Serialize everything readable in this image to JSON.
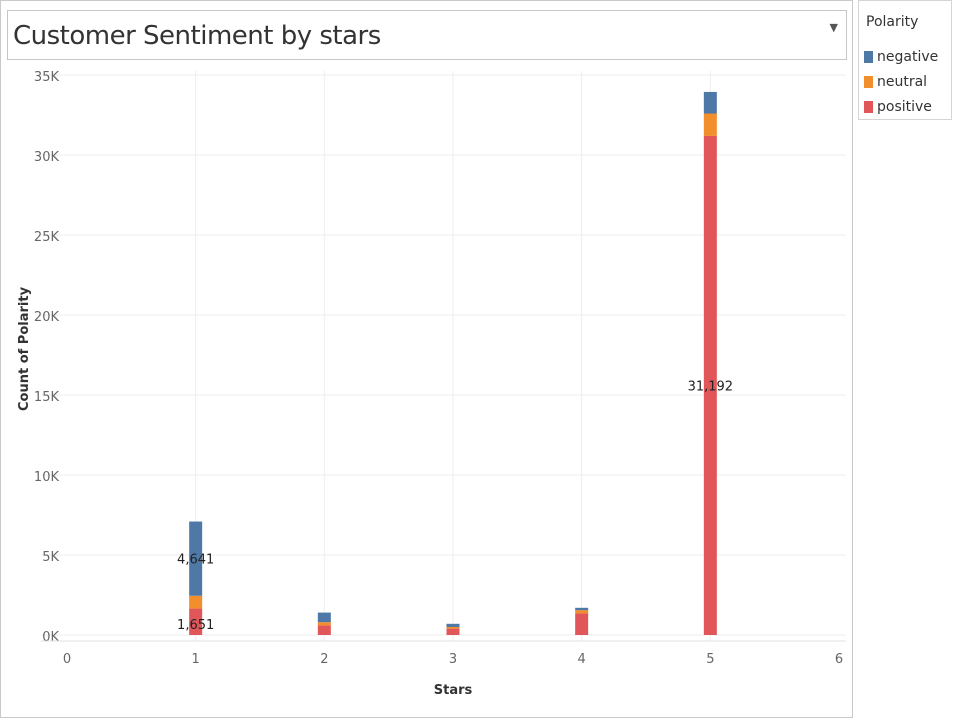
{
  "title": "Customer Sentiment by stars",
  "dropdown_icon": "▼",
  "legend": {
    "title": "Polarity",
    "items": [
      {
        "label": "negative",
        "color": "#4e79a7"
      },
      {
        "label": "neutral",
        "color": "#f28e2b"
      },
      {
        "label": "positive",
        "color": "#e15759"
      }
    ]
  },
  "chart_data": {
    "type": "bar",
    "stacked": true,
    "xlabel": "Stars",
    "ylabel": "Count of Polarity",
    "xlim": [
      0,
      6
    ],
    "ylim": [
      0,
      35000
    ],
    "x_ticks": [
      "0",
      "1",
      "2",
      "3",
      "4",
      "5",
      "6"
    ],
    "y_ticks": [
      {
        "value": 0,
        "label": "0K"
      },
      {
        "value": 5000,
        "label": "5K"
      },
      {
        "value": 10000,
        "label": "10K"
      },
      {
        "value": 15000,
        "label": "15K"
      },
      {
        "value": 20000,
        "label": "20K"
      },
      {
        "value": 25000,
        "label": "25K"
      },
      {
        "value": 30000,
        "label": "30K"
      },
      {
        "value": 35000,
        "label": "35K"
      }
    ],
    "categories": [
      1,
      2,
      3,
      4,
      5
    ],
    "series": [
      {
        "name": "positive",
        "color": "#e15759",
        "values": [
          1651,
          600,
          400,
          1350,
          31192
        ]
      },
      {
        "name": "neutral",
        "color": "#f28e2b",
        "values": [
          800,
          200,
          100,
          200,
          1400
        ]
      },
      {
        "name": "negative",
        "color": "#4e79a7",
        "values": [
          4641,
          600,
          200,
          150,
          1350
        ]
      }
    ],
    "data_labels": [
      {
        "x": 1,
        "series": "positive",
        "text": "1,651"
      },
      {
        "x": 1,
        "series": "negative",
        "text": "4,641"
      },
      {
        "x": 5,
        "series": "positive",
        "text": "31,192"
      }
    ],
    "grid": true
  }
}
